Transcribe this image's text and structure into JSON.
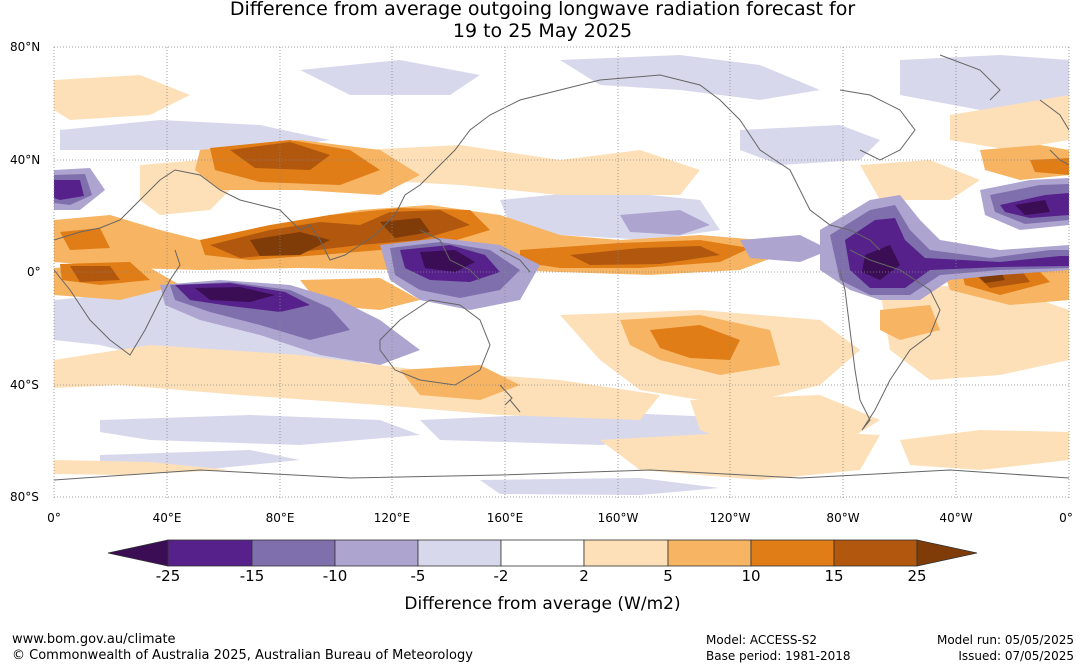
{
  "title": {
    "line1": "Difference from average outgoing longwave radiation forecast for",
    "line2": "19 to 25 May 2025"
  },
  "map": {
    "lat_labels": [
      "80°N",
      "40°N",
      "0°",
      "40°S",
      "80°S"
    ],
    "lon_labels": [
      "0°",
      "40°E",
      "80°E",
      "120°E",
      "160°E",
      "160°W",
      "120°W",
      "80°W",
      "40°W",
      "0°"
    ]
  },
  "colorbar": {
    "ticks": [
      "-25",
      "-15",
      "-10",
      "-5",
      "-2",
      "2",
      "5",
      "10",
      "15",
      "25"
    ],
    "colors": [
      "#3b0d55",
      "#56218a",
      "#7f70ad",
      "#ada4d0",
      "#d8d8ec",
      "#ffffff",
      "#fde0b8",
      "#f7b462",
      "#e07d17",
      "#b1580e",
      "#7f3b08"
    ],
    "label": "Difference from average (W/m2)"
  },
  "footer": {
    "url": "www.bom.gov.au/climate",
    "copyright": "© Commonwealth of Australia 2025, Australian Bureau of Meteorology",
    "model": "Model: ACCESS-S2",
    "base_period": "Base period: 1981-2018",
    "model_run": "Model run: 05/05/2025",
    "issued": "Issued: 07/05/2025"
  }
}
